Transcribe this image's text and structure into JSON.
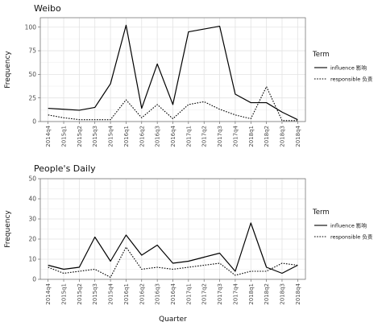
{
  "chart_data": [
    {
      "type": "line",
      "title": "Weibo",
      "xlabel": "",
      "ylabel": "Frequency",
      "ylim": [
        0,
        110
      ],
      "yticks": [
        0,
        25,
        50,
        75,
        100
      ],
      "grid": true,
      "legend_position": "right",
      "legend_title": "Term",
      "categories": [
        "2014q4",
        "2015q1",
        "2015q2",
        "2015q3",
        "2015q4",
        "2016q1",
        "2016q2",
        "2016q3",
        "2016q4",
        "2017q1",
        "2017q2",
        "2017q3",
        "2017q4",
        "2018q1",
        "2018q2",
        "2018q3",
        "2018q4"
      ],
      "series": [
        {
          "name": "influence 影响",
          "style": "solid",
          "values": [
            14,
            13,
            12,
            15,
            40,
            102,
            14,
            61,
            18,
            95,
            98,
            101,
            29,
            20,
            20,
            10,
            2
          ]
        },
        {
          "name": "responsible 负责",
          "style": "dotted",
          "values": [
            7,
            4,
            2,
            2,
            2,
            23,
            4,
            18,
            3,
            18,
            21,
            13,
            7,
            3,
            37,
            1,
            1
          ]
        }
      ]
    },
    {
      "type": "line",
      "title": "People's Daily",
      "xlabel": "Quarter",
      "ylabel": "Frequency",
      "ylim": [
        0,
        50
      ],
      "yticks": [
        0,
        10,
        20,
        30,
        40,
        50
      ],
      "grid": true,
      "legend_position": "right",
      "legend_title": "Term",
      "categories": [
        "2014q4",
        "2015q1",
        "2015q2",
        "2015q3",
        "2015q4",
        "2016q1",
        "2016q2",
        "2016q3",
        "2016q4",
        "2017q1",
        "2017q2",
        "2017q3",
        "2017q4",
        "2018q1",
        "2018q2",
        "2018q3",
        "2018q4"
      ],
      "series": [
        {
          "name": "influence 影响",
          "style": "solid",
          "values": [
            7,
            5,
            6,
            21,
            9,
            22,
            12,
            17,
            8,
            9,
            11,
            13,
            4,
            28,
            6,
            3,
            7
          ]
        },
        {
          "name": "responsible 负责",
          "style": "dotted",
          "values": [
            6,
            3,
            4,
            5,
            1,
            16,
            5,
            6,
            5,
            6,
            7,
            8,
            2,
            4,
            4,
            8,
            7
          ]
        }
      ]
    }
  ]
}
